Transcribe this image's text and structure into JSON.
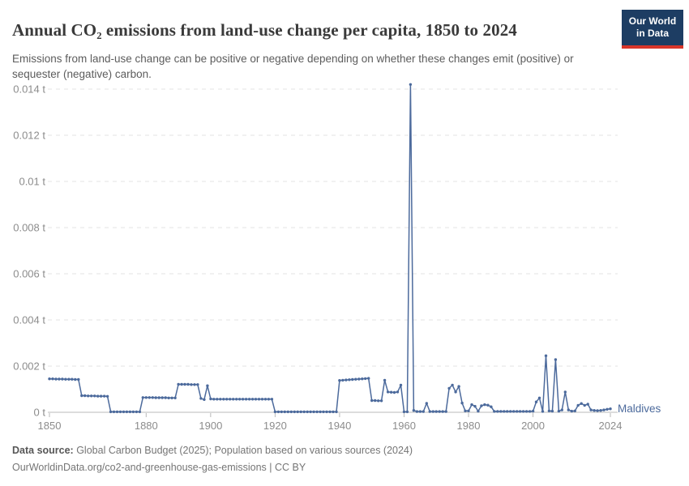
{
  "header": {
    "title": "Annual CO₂ emissions from land-use change per capita, 1850 to 2024",
    "subtitle": "Emissions from land-use change can be positive or negative depending on whether these changes emit (positive) or sequester (negative) carbon."
  },
  "logo": {
    "line1": "Our World",
    "line2": "in Data",
    "bg_color": "#1d3d63",
    "accent_color": "#d8352a"
  },
  "footer": {
    "data_source_label": "Data source:",
    "data_source_text": " Global Carbon Budget (2025); Population based on various sources (2024)",
    "url_line": "OurWorldinData.org/co2-and-greenhouse-gas-emissions | CC BY"
  },
  "colors": {
    "series_blue": "#4c6a9c",
    "grid": "#e3e3e3",
    "axis": "#b8b8b8",
    "tick_text": "#8c8c8c"
  },
  "chart_data": {
    "type": "line",
    "title": "Annual CO₂ emissions from land-use change per capita, 1850 to 2024",
    "unit": "t",
    "entity_label": "Maldives",
    "x_range": [
      1850,
      2024
    ],
    "x_ticks": [
      1850,
      1880,
      1900,
      1920,
      1940,
      1960,
      1980,
      2000,
      2024
    ],
    "y_ticks": [
      0,
      0.002,
      0.004,
      0.006,
      0.008,
      0.01,
      0.012,
      0.014
    ],
    "y_tick_labels": [
      "0 t",
      "0.002 t",
      "0.004 t",
      "0.006 t",
      "0.008 t",
      "0.01 t",
      "0.012 t",
      "0.014 t"
    ],
    "ylim": [
      0,
      0.0145
    ],
    "grid": "horizontal-dashed",
    "legend_position": "line-end-label",
    "series": [
      {
        "name": "Maldives",
        "color": "#4c6a9c",
        "start_year": 1850,
        "values": [
          0.00145,
          0.00145,
          0.00144,
          0.00144,
          0.00144,
          0.00143,
          0.00143,
          0.00143,
          0.00142,
          0.00142,
          0.00072,
          0.00072,
          0.00071,
          0.00071,
          0.00071,
          0.0007,
          0.0007,
          0.0007,
          0.00069,
          2e-05,
          2e-05,
          2e-05,
          2e-05,
          2e-05,
          2e-05,
          2e-05,
          2e-05,
          2e-05,
          2e-05,
          0.00064,
          0.00064,
          0.00064,
          0.00064,
          0.00063,
          0.00063,
          0.00063,
          0.00063,
          0.00062,
          0.00062,
          0.00062,
          0.00121,
          0.00121,
          0.00121,
          0.00121,
          0.0012,
          0.0012,
          0.0012,
          0.0006,
          0.00055,
          0.00115,
          0.00058,
          0.00057,
          0.00057,
          0.00057,
          0.00057,
          0.00057,
          0.00057,
          0.00057,
          0.00057,
          0.00057,
          0.00057,
          0.00057,
          0.00057,
          0.00057,
          0.00057,
          0.00057,
          0.00057,
          0.00057,
          0.00057,
          0.00057,
          2e-05,
          2e-05,
          2e-05,
          2e-05,
          2e-05,
          2e-05,
          2e-05,
          2e-05,
          2e-05,
          2e-05,
          2e-05,
          2e-05,
          2e-05,
          2e-05,
          2e-05,
          2e-05,
          2e-05,
          2e-05,
          2e-05,
          2e-05,
          0.00138,
          0.00139,
          0.0014,
          0.00141,
          0.00142,
          0.00143,
          0.00144,
          0.00145,
          0.00146,
          0.00147,
          0.00051,
          0.00051,
          0.0005,
          0.0005,
          0.00139,
          0.00088,
          0.00087,
          0.00086,
          0.00088,
          0.00118,
          2e-05,
          2e-05,
          0.0142,
          8e-05,
          3e-05,
          3e-05,
          3e-05,
          0.00039,
          3e-05,
          3e-05,
          3e-05,
          3e-05,
          3e-05,
          3e-05,
          0.00104,
          0.00118,
          0.00088,
          0.00112,
          0.0004,
          6e-05,
          6e-05,
          0.00033,
          0.00026,
          5e-05,
          0.00028,
          0.00033,
          0.00031,
          0.00024,
          4e-05,
          4e-05,
          4e-05,
          4e-05,
          4e-05,
          4e-05,
          4e-05,
          4e-05,
          4e-05,
          4e-05,
          4e-05,
          4e-05,
          5e-05,
          0.00045,
          0.00062,
          4e-05,
          0.00245,
          6e-05,
          5e-05,
          0.00228,
          5e-05,
          0.0001,
          0.00088,
          0.0001,
          5e-05,
          6e-05,
          0.0003,
          0.00038,
          0.0003,
          0.00035,
          0.0001,
          8e-05,
          7e-05,
          8e-05,
          0.0001,
          0.00013,
          0.00015
        ]
      }
    ]
  }
}
